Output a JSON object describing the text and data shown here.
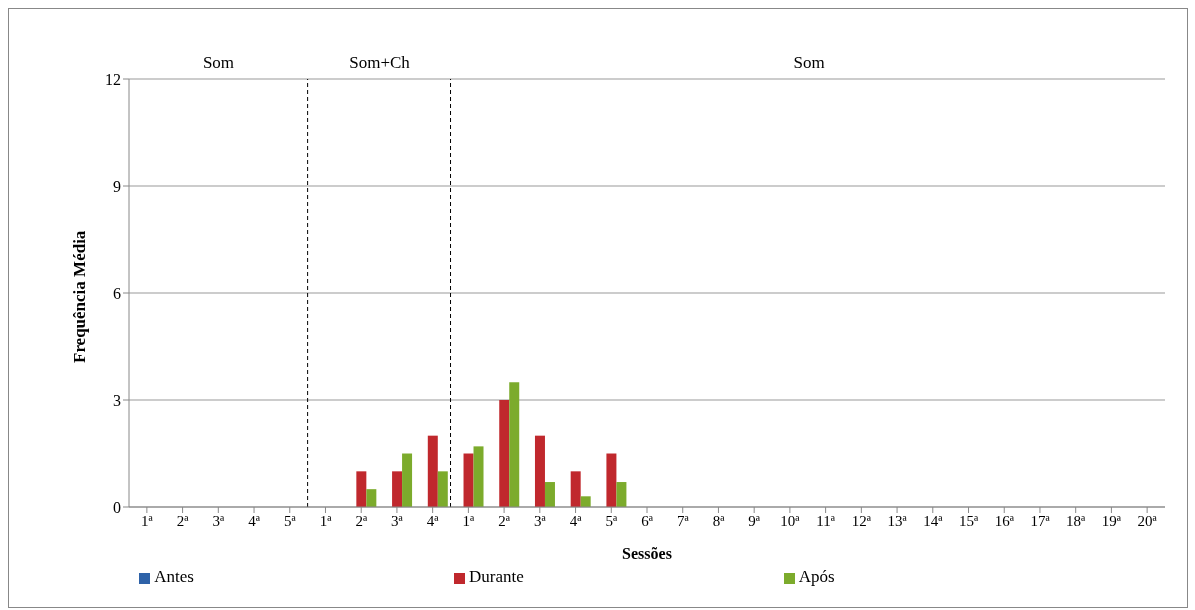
{
  "chart_data": {
    "type": "bar",
    "xlabel": "Sessões",
    "ylabel": "Frequência Média",
    "categories": [
      "1ª",
      "2ª",
      "3ª",
      "4ª",
      "5ª",
      "1ª",
      "2ª",
      "3ª",
      "4ª",
      "1ª",
      "2ª",
      "3ª",
      "4ª",
      "5ª",
      "6ª",
      "7ª",
      "8ª",
      "9ª",
      "10ª",
      "11ª",
      "12ª",
      "13ª",
      "14ª",
      "15ª",
      "16ª",
      "17ª",
      "18ª",
      "19ª",
      "20ª"
    ],
    "series": [
      {
        "name": "Antes",
        "color": "#2e62a8",
        "values": [
          0,
          0,
          0,
          0,
          0,
          0,
          0,
          0,
          0,
          0,
          0,
          0,
          0,
          0,
          0,
          0,
          0,
          0,
          0,
          0,
          0,
          0,
          0,
          0,
          0,
          0,
          0,
          0,
          0
        ]
      },
      {
        "name": "Durante",
        "color": "#c0282d",
        "values": [
          0,
          0,
          0,
          0,
          0,
          0,
          1,
          1,
          2,
          1.5,
          3,
          2,
          1,
          1.5,
          0,
          0,
          0,
          0,
          0,
          0,
          0,
          0,
          0,
          0,
          0,
          0,
          0,
          0,
          0
        ]
      },
      {
        "name": "Após",
        "color": "#7cab2c",
        "values": [
          0,
          0,
          0,
          0,
          0,
          0,
          0.5,
          1.5,
          1,
          1.7,
          3.5,
          0.7,
          0.3,
          0.7,
          0,
          0,
          0,
          0,
          0,
          0,
          0,
          0,
          0,
          0,
          0,
          0,
          0,
          0,
          0
        ]
      }
    ],
    "ylim": [
      0,
      12
    ],
    "yticks": [
      0,
      3,
      6,
      9,
      12
    ],
    "grid": "y",
    "legend": "bottom",
    "annotations": [
      "Som",
      "Som+Ch",
      "Som"
    ]
  }
}
